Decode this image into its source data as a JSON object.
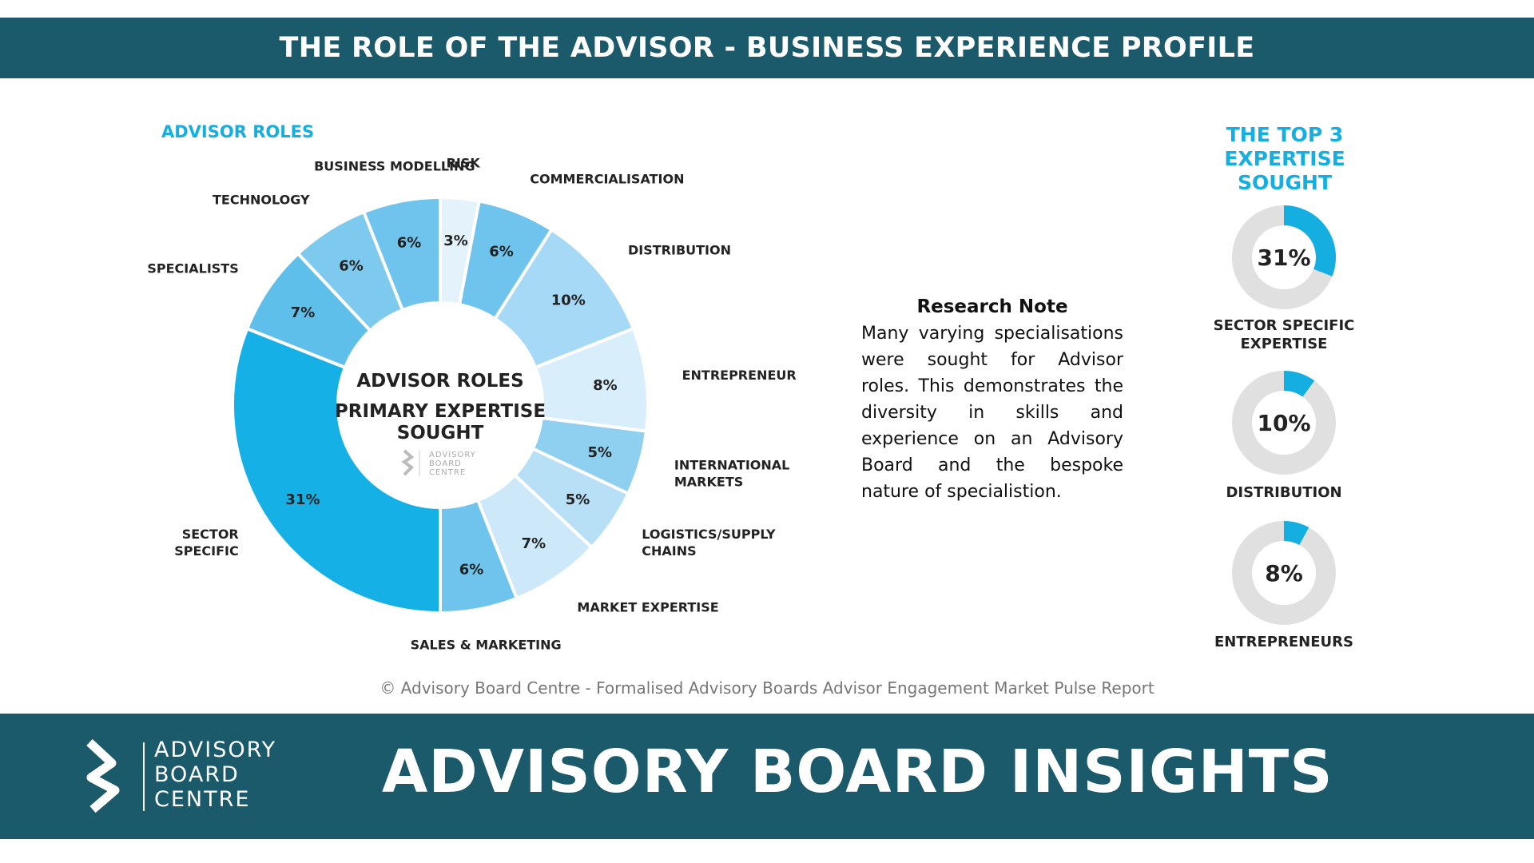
{
  "header": {
    "title": "THE ROLE OF THE ADVISOR - BUSINESS EXPERIENCE PROFILE"
  },
  "section_label": "ADVISOR ROLES",
  "donut_center": {
    "line1": "ADVISOR ROLES",
    "line2": "PRIMARY EXPERTISE",
    "line3": "SOUGHT",
    "logo_lines": [
      "ADVISORY",
      "BOARD",
      "CENTRE"
    ]
  },
  "chart_data": [
    {
      "type": "pie",
      "title": "ADVISOR ROLES PRIMARY EXPERTISE SOUGHT",
      "slices": [
        {
          "label": "RISK",
          "label_lines": [
            "RISK"
          ],
          "value": 3,
          "value_label": "3%",
          "color": "#e4f2fb"
        },
        {
          "label": "COMMERCIALISATION",
          "label_lines": [
            "COMMERCIALISATION"
          ],
          "value": 6,
          "value_label": "6%",
          "color": "#6ec4ec"
        },
        {
          "label": "DISTRIBUTION",
          "label_lines": [
            "DISTRIBUTION"
          ],
          "value": 10,
          "value_label": "10%",
          "color": "#a6d9f5"
        },
        {
          "label": "ENTREPRENEUR",
          "label_lines": [
            "ENTREPRENEUR"
          ],
          "value": 8,
          "value_label": "8%",
          "color": "#d9eefb"
        },
        {
          "label": "INTERNATIONAL MARKETS",
          "label_lines": [
            "INTERNATIONAL",
            "MARKETS"
          ],
          "value": 5,
          "value_label": "5%",
          "color": "#8fd0f1"
        },
        {
          "label": "LOGISTICS/SUPPLY CHAINS",
          "label_lines": [
            "LOGISTICS/SUPPLY",
            "CHAINS"
          ],
          "value": 5,
          "value_label": "5%",
          "color": "#b7e0f6"
        },
        {
          "label": "MARKET EXPERTISE",
          "label_lines": [
            "MARKET EXPERTISE"
          ],
          "value": 7,
          "value_label": "7%",
          "color": "#cde9f9"
        },
        {
          "label": "SALES & MARKETING",
          "label_lines": [
            "SALES & MARKETING"
          ],
          "value": 6,
          "value_label": "6%",
          "color": "#6ec4ec"
        },
        {
          "label": "SECTOR SPECIFIC",
          "label_lines": [
            "SECTOR",
            "SPECIFIC"
          ],
          "value": 31,
          "value_label": "31%",
          "color": "#14b0e6"
        },
        {
          "label": "SPECIALISTS",
          "label_lines": [
            "SPECIALISTS"
          ],
          "value": 7,
          "value_label": "7%",
          "color": "#5fbfeb"
        },
        {
          "label": "TECHNOLOGY",
          "label_lines": [
            "TECHNOLOGY"
          ],
          "value": 6,
          "value_label": "6%",
          "color": "#7dcaee"
        },
        {
          "label": "BUSINESS MODELLING",
          "label_lines": [
            "BUSINESS MODELLING"
          ],
          "value": 6,
          "value_label": "6%",
          "color": "#6ec4ec"
        }
      ]
    },
    {
      "type": "pie",
      "title": "THE TOP 3 EXPERTISE SOUGHT",
      "slices": [
        {
          "label": "SECTOR SPECIFIC EXPERTISE",
          "label_lines": [
            "SECTOR SPECIFIC",
            "EXPERTISE"
          ],
          "value": 31,
          "value_label": "31%"
        },
        {
          "label": "DISTRIBUTION",
          "label_lines": [
            "DISTRIBUTION"
          ],
          "value": 10,
          "value_label": "10%"
        },
        {
          "label": "ENTREPRENEURS",
          "label_lines": [
            "ENTREPRENEURS"
          ],
          "value": 8,
          "value_label": "8%"
        }
      ]
    }
  ],
  "top3_title_lines": [
    "THE TOP 3",
    "EXPERTISE",
    "SOUGHT"
  ],
  "research_note": {
    "title": "Research Note",
    "body": "Many varying specialisations were sought for Advisor roles.  This demonstrates the diversity in skills and experience on an Advisory Board and the bespoke nature of specialistion."
  },
  "footnote": "© Advisory Board Centre - Formalised Advisory Boards Advisor Engagement Market Pulse Report",
  "footer": {
    "logo_lines": [
      "ADVISORY",
      "BOARD",
      "CENTRE"
    ],
    "headline": "ADVISORY BOARD INSIGHTS"
  },
  "colors": {
    "banner": "#1b5a6b",
    "accent": "#14aee1",
    "ring_track": "#e0e0e0",
    "ring_fill": "#14aee1"
  }
}
